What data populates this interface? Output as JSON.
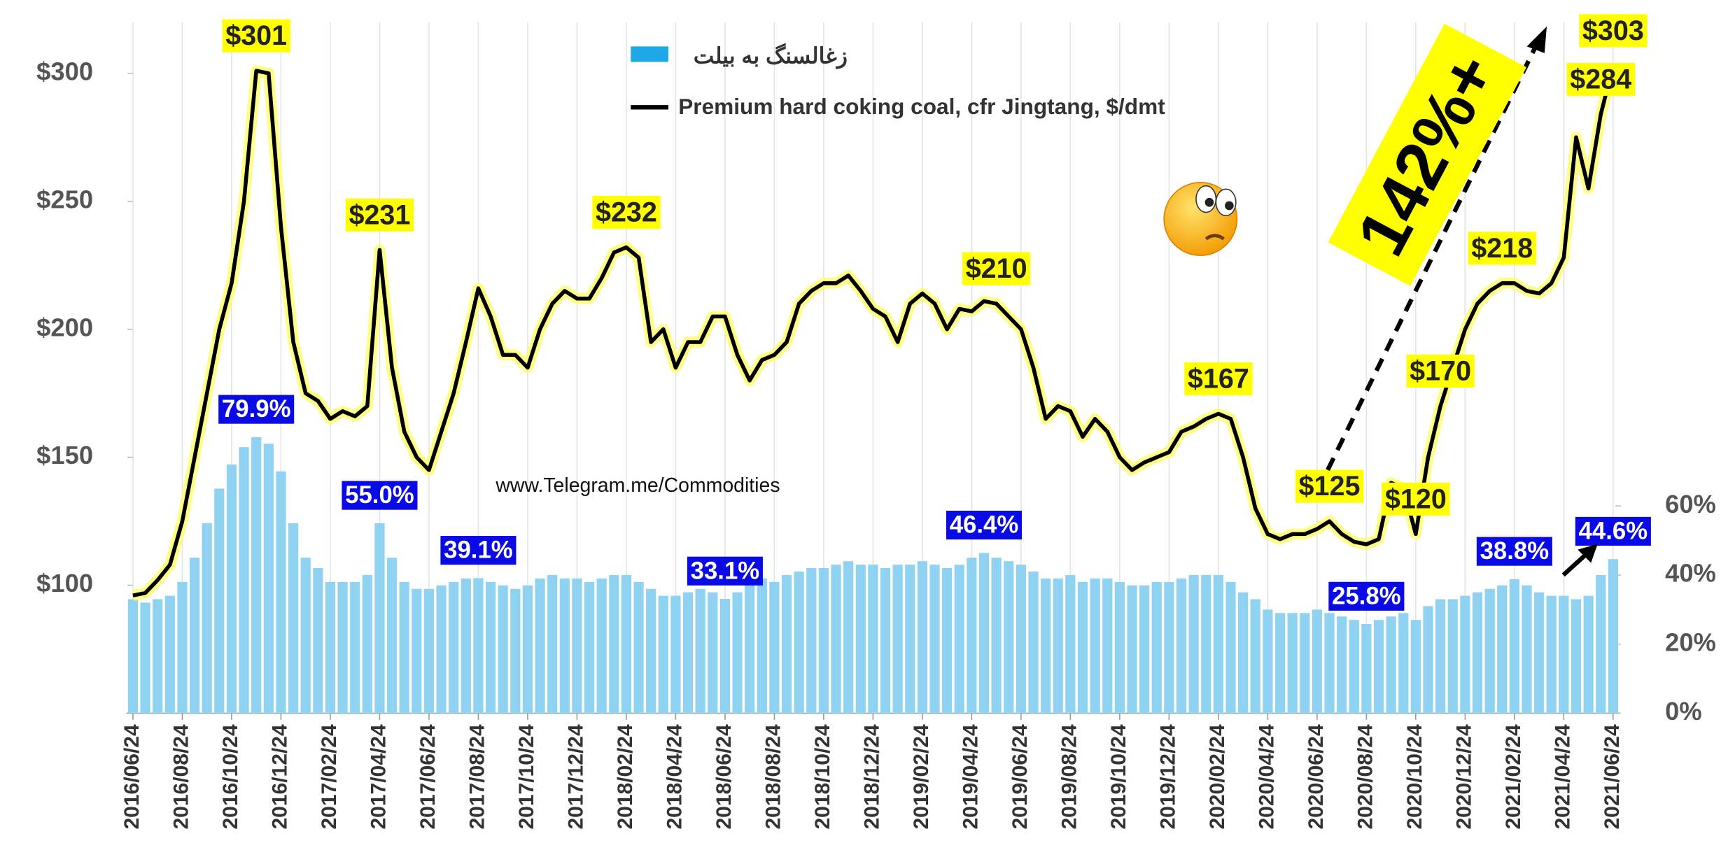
{
  "chart_data": {
    "type": "combo",
    "annotations": [
      "www.Telegram.me/Commodities",
      "142%+"
    ],
    "categories": [
      "2016/06/24",
      null,
      null,
      null,
      "2016/08/24",
      null,
      null,
      null,
      "2016/10/24",
      null,
      null,
      null,
      "2016/12/24",
      null,
      null,
      null,
      "2017/02/24",
      null,
      null,
      null,
      "2017/04/24",
      null,
      null,
      null,
      "2017/06/24",
      null,
      null,
      null,
      "2017/08/24",
      null,
      null,
      null,
      "2017/10/24",
      null,
      null,
      null,
      "2017/12/24",
      null,
      null,
      null,
      "2018/02/24",
      null,
      null,
      null,
      "2018/04/24",
      null,
      null,
      null,
      "2018/06/24",
      null,
      null,
      null,
      "2018/08/24",
      null,
      null,
      null,
      "2018/10/24",
      null,
      null,
      null,
      "2018/12/24",
      null,
      null,
      null,
      "2019/02/24",
      null,
      null,
      null,
      "2019/04/24",
      null,
      null,
      null,
      "2019/06/24",
      null,
      null,
      null,
      "2019/08/24",
      null,
      null,
      null,
      "2019/10/24",
      null,
      null,
      null,
      "2019/12/24",
      null,
      null,
      null,
      "2020/02/24",
      null,
      null,
      null,
      "2020/04/24",
      null,
      null,
      null,
      "2020/06/24",
      null,
      null,
      null,
      "2020/08/24",
      null,
      null,
      null,
      "2020/10/24",
      null,
      null,
      null,
      "2020/12/24",
      null,
      null,
      null,
      "2021/02/24",
      null,
      null,
      null,
      "2021/04/24",
      null,
      null,
      null,
      "2021/06/24"
    ],
    "series": [
      {
        "name": "زغالسنگ به بیلت",
        "type": "bar",
        "axis": "y2",
        "color": "#8fd2f2",
        "values": [
          33,
          32,
          33,
          34,
          38,
          45,
          55,
          65,
          72,
          77,
          79.9,
          78,
          70,
          55,
          45,
          42,
          38,
          38,
          38,
          40,
          55.0,
          45,
          38,
          36,
          36,
          37,
          38,
          39,
          39.1,
          38,
          37,
          36,
          37,
          39,
          40,
          39,
          39,
          38,
          39,
          40,
          40,
          38,
          36,
          34,
          34,
          35,
          36,
          35,
          33.1,
          35,
          38,
          39,
          38,
          40,
          41,
          42,
          42,
          43,
          44,
          43,
          43,
          42,
          43,
          43,
          44,
          43,
          42,
          43,
          45,
          46.4,
          45,
          44,
          43,
          41,
          39,
          39,
          40,
          38,
          39,
          39,
          38,
          37,
          37,
          38,
          38,
          39,
          40,
          40,
          40,
          38,
          35,
          33,
          30,
          29,
          29,
          29,
          30,
          29,
          28,
          27,
          25.8,
          27,
          28,
          29,
          27,
          31,
          33,
          33,
          34,
          35,
          36,
          37,
          38.8,
          37,
          35,
          34,
          34,
          33,
          34,
          40,
          44.6
        ],
        "value_labels": [
          null,
          null,
          null,
          null,
          null,
          null,
          null,
          null,
          null,
          null,
          "79.9%",
          null,
          null,
          null,
          null,
          null,
          null,
          null,
          null,
          null,
          "55.0%",
          null,
          null,
          null,
          null,
          null,
          null,
          null,
          "39.1%",
          null,
          null,
          null,
          null,
          null,
          null,
          null,
          null,
          null,
          null,
          null,
          null,
          null,
          null,
          null,
          null,
          null,
          null,
          null,
          "33.1%",
          null,
          null,
          null,
          null,
          null,
          null,
          null,
          null,
          null,
          null,
          null,
          null,
          null,
          null,
          null,
          null,
          null,
          null,
          null,
          null,
          "46.4%",
          null,
          null,
          null,
          null,
          null,
          null,
          null,
          null,
          null,
          null,
          null,
          null,
          null,
          null,
          null,
          null,
          null,
          null,
          null,
          null,
          null,
          null,
          null,
          null,
          null,
          null,
          null,
          null,
          null,
          null,
          "25.8%",
          null,
          null,
          null,
          null,
          null,
          null,
          null,
          null,
          null,
          null,
          null,
          "38.8%",
          null,
          null,
          null,
          null,
          null,
          null,
          null,
          "44.6%"
        ]
      },
      {
        "name": "Premium hard coking coal, cfr Jingtang, $/dmt",
        "type": "line",
        "color": "#000000",
        "values": [
          96,
          97,
          102,
          108,
          125,
          150,
          175,
          200,
          218,
          250,
          301,
          300,
          240,
          195,
          175,
          172,
          165,
          168,
          166,
          170,
          231,
          185,
          160,
          150,
          145,
          160,
          175,
          195,
          216,
          205,
          190,
          190,
          185,
          200,
          210,
          215,
          212,
          212,
          220,
          230,
          232,
          228,
          195,
          200,
          185,
          195,
          195,
          205,
          205,
          190,
          180,
          188,
          190,
          195,
          210,
          215,
          218,
          218,
          221,
          215,
          208,
          205,
          195,
          210,
          214,
          210,
          200,
          208,
          207,
          211,
          210,
          205,
          200,
          185,
          165,
          170,
          168,
          158,
          165,
          160,
          150,
          145,
          148,
          150,
          152,
          160,
          162,
          165,
          167,
          165,
          150,
          130,
          120,
          118,
          120,
          120,
          122,
          125,
          120,
          117,
          116,
          118,
          140,
          138,
          120,
          150,
          170,
          185,
          200,
          210,
          215,
          218,
          218,
          215,
          214,
          218,
          228,
          275,
          255,
          284,
          303
        ],
        "value_labels": [
          null,
          null,
          null,
          null,
          null,
          null,
          null,
          null,
          null,
          null,
          "$301",
          null,
          null,
          null,
          null,
          null,
          null,
          null,
          null,
          null,
          "$231",
          null,
          null,
          null,
          null,
          null,
          null,
          null,
          null,
          null,
          null,
          null,
          null,
          null,
          null,
          null,
          null,
          null,
          null,
          null,
          "$232",
          null,
          null,
          null,
          null,
          null,
          null,
          null,
          null,
          null,
          null,
          null,
          null,
          null,
          null,
          null,
          null,
          null,
          null,
          null,
          null,
          null,
          null,
          null,
          null,
          null,
          null,
          null,
          null,
          null,
          "$210",
          null,
          null,
          null,
          null,
          null,
          null,
          null,
          null,
          null,
          null,
          null,
          null,
          null,
          null,
          null,
          null,
          null,
          "$167",
          null,
          null,
          null,
          null,
          null,
          null,
          null,
          null,
          "$125",
          null,
          null,
          null,
          null,
          null,
          null,
          "$120",
          null,
          "$170",
          null,
          null,
          null,
          null,
          "$218",
          null,
          null,
          null,
          null,
          null,
          null,
          null,
          "$284",
          "$303"
        ]
      }
    ],
    "ylim": [
      50,
      320
    ],
    "yticks": [
      {
        "value": 100,
        "label": "$100"
      },
      {
        "value": 150,
        "label": "$150"
      },
      {
        "value": 200,
        "label": "$200"
      },
      {
        "value": 250,
        "label": "$250"
      },
      {
        "value": 300,
        "label": "$300"
      }
    ],
    "y2lim": [
      0,
      200
    ],
    "y2ticks": [
      {
        "value": 0,
        "label": "0%"
      },
      {
        "value": 20,
        "label": "20%"
      },
      {
        "value": 40,
        "label": "40%"
      },
      {
        "value": 60,
        "label": "60%"
      }
    ],
    "grid": true
  }
}
